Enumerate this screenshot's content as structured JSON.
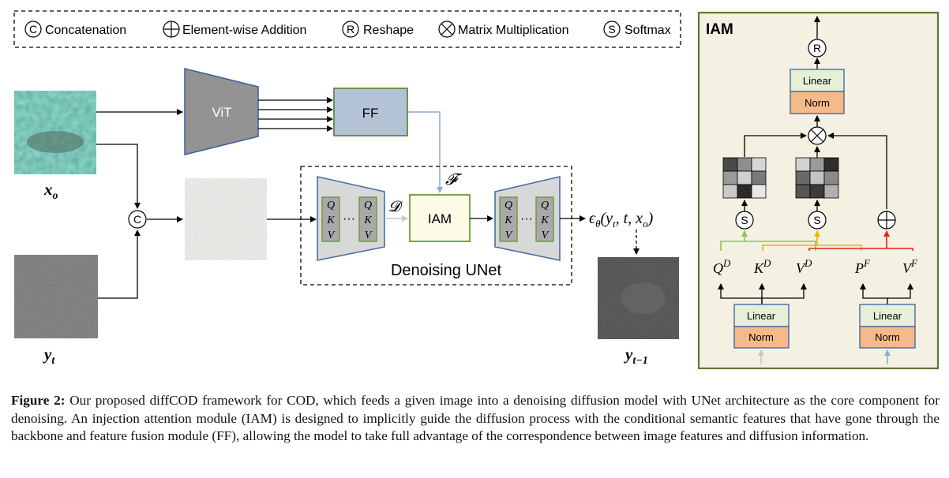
{
  "legend": {
    "concat_symbol": "C",
    "concat": "Concatenation",
    "add": "Element-wise Addition",
    "reshape_symbol": "R",
    "reshape": "Reshape",
    "matmul": "Matrix Multiplication",
    "softmax_symbol": "S",
    "softmax": "Softmax"
  },
  "main": {
    "vit": "ViT",
    "ff": "FF",
    "iam": "IAM",
    "F_sym": "𝓕",
    "D_sym": "𝓓",
    "q": "Q",
    "k": "K",
    "v": "V",
    "dots": "···",
    "unet_label": "Denoising UNet",
    "x0": "x",
    "x0_sub": "o",
    "yt": "y",
    "yt_sub": "t",
    "yt1": "y",
    "yt1_sub": "t−1",
    "concat_symbol": "C",
    "output_eps": "ϵ",
    "output_theta": "θ",
    "output_args": "(y",
    "output_t_sub": "t",
    "output_rest": ", t, x",
    "output_o_sub": "o",
    "output_close": ")"
  },
  "iam_panel": {
    "title": "IAM",
    "linear": "Linear",
    "norm": "Norm",
    "reshape_symbol": "R",
    "softmax_symbol": "S",
    "qd": "Q",
    "kd": "K",
    "vd": "V",
    "pf": "P",
    "vf": "V",
    "sup_d": "D",
    "sup_f": "F"
  },
  "caption": {
    "label": "Figure 2:",
    "text": " Our proposed diffCOD framework for COD, which feeds a given image into a denoising diffusion model with UNet architecture as the core component for denoising. An injection attention module (IAM) is designed to implicitly guide the diffusion process with the conditional semantic features that have gone through the backbone and feature fusion module (FF), allowing the model to take full advantage of the correspondence between image features and diffusion information."
  },
  "colors": {
    "ff_fill": "#b4c2d6",
    "ff_border": "#5e8a3a",
    "vit_fill": "#939393",
    "iam_fill": "#fdfbe6",
    "iam_border": "#6a9a3a",
    "panel_fill": "#f4f1e2",
    "panel_border": "#5b7a34",
    "unet_fill": "#d8d8d8",
    "unet_border": "#4a6fa5",
    "linear_fill": "#e6f0d7",
    "norm_fill": "#f6b98a",
    "box_border": "#3d5fa0",
    "green_line": "#8dc63f",
    "yellow_line": "#f0b400",
    "red_line": "#e8221b",
    "blue_line": "#90a9d4"
  }
}
